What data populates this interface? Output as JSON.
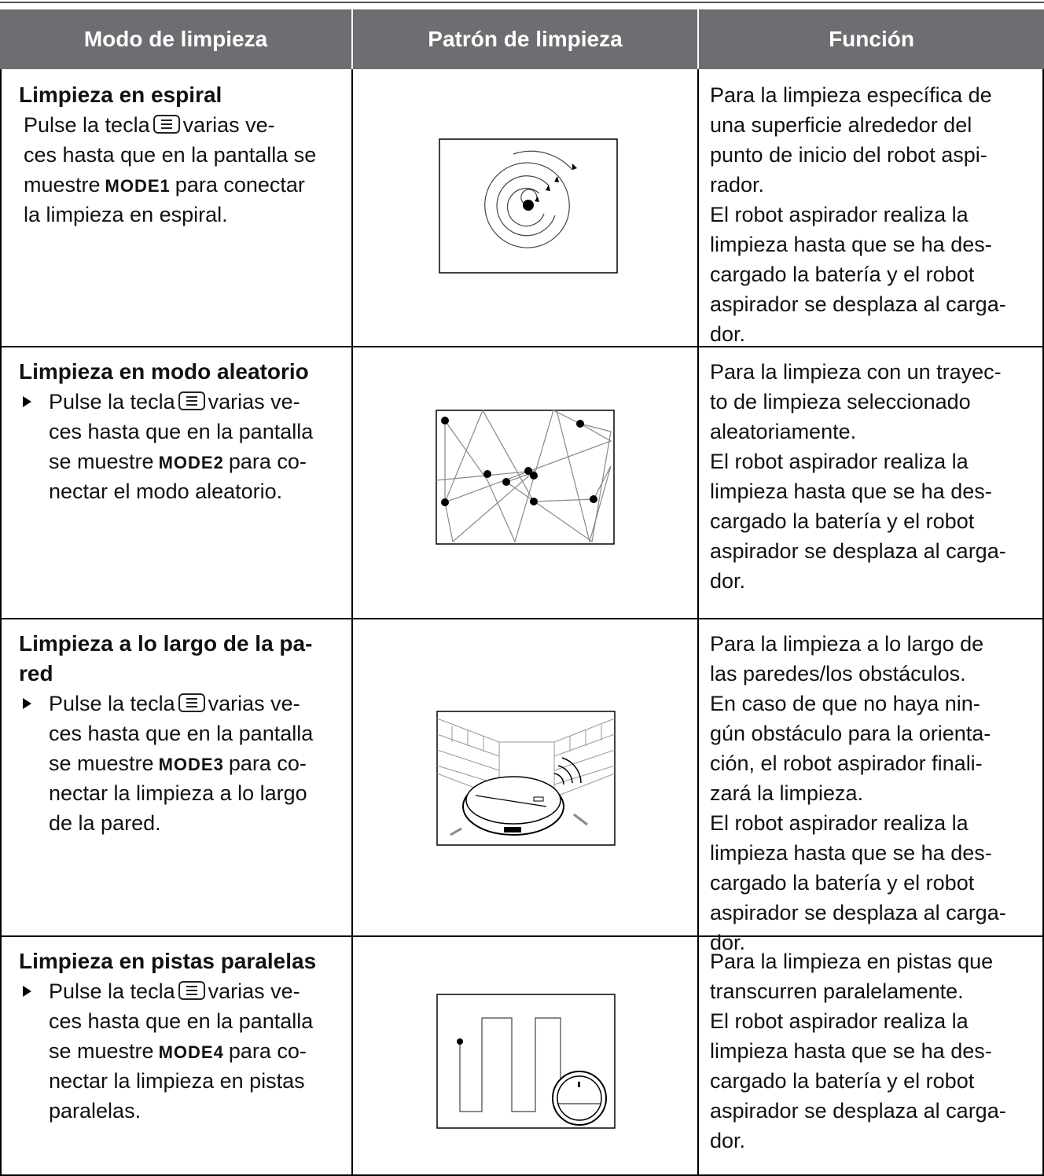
{
  "header": {
    "columns": [
      "Modo de limpieza",
      "Patrón de limpieza",
      "Función"
    ]
  },
  "rows": [
    {
      "title_lines": [
        "Limpieza en espiral"
      ],
      "bullet": false,
      "key_line": {
        "before": "Pulse la tecla",
        "after": "varias ve-"
      },
      "middle_lines": [
        "ces hasta que en la pantalla se"
      ],
      "mode_line": {
        "before": "muestre",
        "mode": "MODE1",
        "after": "para conectar"
      },
      "end_lines": [
        "la limpieza en espiral."
      ],
      "function_lines": [
        "Para la limpieza específica de",
        "una superficie alrededor del",
        "punto de inicio del robot aspi-",
        "rador.",
        "El robot aspirador realiza la",
        "limpieza hasta que se ha des-",
        "cargado la batería y el robot",
        "aspirador se desplaza al carga-",
        "dor."
      ]
    },
    {
      "title_lines": [
        "Limpieza en modo aleatorio"
      ],
      "bullet": true,
      "key_line": {
        "before": "Pulse la tecla",
        "after": "varias ve-"
      },
      "middle_lines": [
        "ces hasta que en la pantalla"
      ],
      "mode_line": {
        "before": "se muestre",
        "mode": "MODE2",
        "after": "para co-"
      },
      "end_lines": [
        "nectar el modo aleatorio."
      ],
      "function_lines": [
        "Para la limpieza con un trayec-",
        "to de limpieza seleccionado",
        "aleatoriamente.",
        "El robot aspirador realiza la",
        "limpieza hasta que se ha des-",
        "cargado la batería y el robot",
        "aspirador se desplaza al carga-",
        "dor."
      ]
    },
    {
      "title_lines": [
        "Limpieza a lo largo de la pa-",
        "red"
      ],
      "bullet": true,
      "key_line": {
        "before": "Pulse la tecla",
        "after": "varias ve-"
      },
      "middle_lines": [
        "ces hasta que en la pantalla"
      ],
      "mode_line": {
        "before": "se muestre",
        "mode": "MODE3",
        "after": "para co-"
      },
      "end_lines": [
        "nectar la limpieza a lo largo",
        "de la pared."
      ],
      "function_lines": [
        "Para la limpieza a lo largo de",
        "las paredes/los obstáculos.",
        "En caso de que no haya nin-",
        "gún obstáculo para la orienta-",
        "ción, el robot aspirador finali-",
        "zará la limpieza.",
        "El robot aspirador realiza la",
        "limpieza hasta que se ha des-",
        "cargado la batería y el robot",
        "aspirador se desplaza al carga-",
        "dor."
      ]
    },
    {
      "title_lines": [
        "Limpieza en pistas paralelas"
      ],
      "bullet": true,
      "key_line": {
        "before": "Pulse la tecla",
        "after": "varias ve-"
      },
      "middle_lines": [
        "ces hasta que en la pantalla"
      ],
      "mode_line": {
        "before": "se muestre",
        "mode": "MODE4",
        "after": "para co-"
      },
      "end_lines": [
        "nectar la limpieza en pistas",
        "paralelas."
      ],
      "function_lines": [
        "Para la limpieza en pistas que",
        "transcurren paralelamente.",
        "El robot aspirador realiza la",
        "limpieza hasta que se ha des-",
        "cargado la batería y el robot",
        "aspirador se desplaza al carga-",
        "dor."
      ]
    }
  ]
}
